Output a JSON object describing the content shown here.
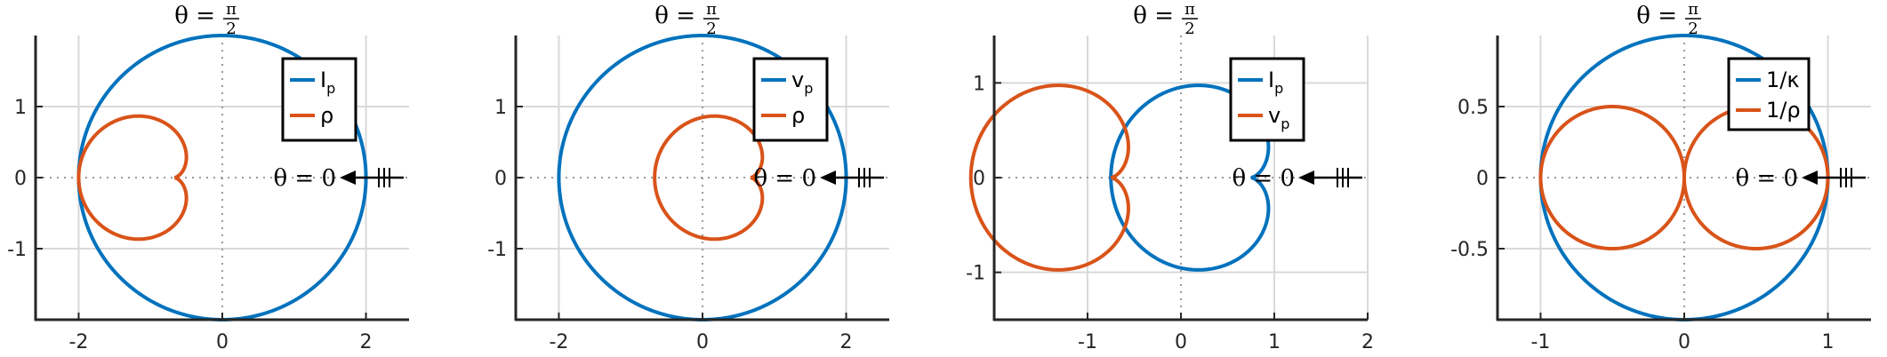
{
  "colors": {
    "blue": "#0072bd",
    "orange": "#d95319",
    "axis": "#262626",
    "grid": "#d9d9d9",
    "zero_line": "#999999"
  },
  "chart_data": [
    {
      "type": "line",
      "subtype": "parametric polar curves",
      "title": "",
      "top_label": {
        "symbol": "θ = ",
        "numerator": "π",
        "denominator": "2"
      },
      "right_label": "θ = 0",
      "xlim": [
        -2.6,
        2.6
      ],
      "ylim": [
        -2,
        2
      ],
      "xticks": [
        -2,
        0,
        2
      ],
      "xtick_labels": [
        "-2",
        "0",
        "2"
      ],
      "yticks": [
        -1,
        0,
        1
      ],
      "ytick_labels": [
        "-1",
        "0",
        "1"
      ],
      "grid": true,
      "legend_position": "top-right",
      "series": [
        {
          "name": "I",
          "subscript": "p",
          "color": "#0072bd",
          "curve": "circle",
          "params": {
            "cx": 0,
            "cy": 0,
            "r": 2
          }
        },
        {
          "name": "ρ",
          "subscript": "",
          "color": "#d95319",
          "curve": "cardioid",
          "params": {
            "a": 0.6667,
            "d": -0.6667,
            "c": -0.6667
          }
        }
      ]
    },
    {
      "type": "line",
      "subtype": "parametric polar curves",
      "title": "",
      "top_label": {
        "symbol": "θ = ",
        "numerator": "π",
        "denominator": "2"
      },
      "right_label": "θ = 0",
      "xlim": [
        -2.6,
        2.6
      ],
      "ylim": [
        -2,
        2
      ],
      "xticks": [
        -2,
        0,
        2
      ],
      "xtick_labels": [
        "-2",
        "0",
        "2"
      ],
      "yticks": [
        -1,
        0,
        1
      ],
      "ytick_labels": [
        "-1",
        "0",
        "1"
      ],
      "grid": true,
      "legend_position": "top-right",
      "series": [
        {
          "name": "v",
          "subscript": "p",
          "color": "#0072bd",
          "curve": "circle",
          "params": {
            "cx": 0,
            "cy": 0,
            "r": 2
          }
        },
        {
          "name": "ρ",
          "subscript": "",
          "color": "#d95319",
          "curve": "cardioid",
          "params": {
            "a": 0.6667,
            "d": 0.6667,
            "c": 0.6667
          }
        }
      ]
    },
    {
      "type": "line",
      "subtype": "parametric polar curves",
      "title": "",
      "top_label": {
        "symbol": "θ = ",
        "numerator": "π",
        "denominator": "2"
      },
      "right_label": "θ = 0",
      "xlim": [
        -2,
        2
      ],
      "ylim": [
        -1.5,
        1.5
      ],
      "xticks": [
        -1,
        0,
        1,
        2
      ],
      "xtick_labels": [
        "-1",
        "0",
        "1",
        "2"
      ],
      "yticks": [
        -1,
        0,
        1
      ],
      "ytick_labels": [
        "-1",
        "0",
        "1"
      ],
      "grid": true,
      "legend_position": "top-right",
      "series": [
        {
          "name": "I",
          "subscript": "p",
          "color": "#0072bd",
          "curve": "cardioid",
          "params": {
            "a": 0.75,
            "d": 0.75,
            "c": 0.75
          }
        },
        {
          "name": "v",
          "subscript": "p",
          "color": "#d95319",
          "curve": "cardioid",
          "params": {
            "a": 0.75,
            "d": -0.75,
            "c": -0.75
          }
        }
      ]
    },
    {
      "type": "line",
      "subtype": "parametric polar curves",
      "title": "",
      "top_label": {
        "symbol": "θ = ",
        "numerator": "π",
        "denominator": "2"
      },
      "right_label": "θ = 0",
      "xlim": [
        -1.3,
        1.3
      ],
      "ylim": [
        -1,
        1
      ],
      "xticks": [
        -1,
        0,
        1
      ],
      "xtick_labels": [
        "-1",
        "0",
        "1"
      ],
      "yticks": [
        -0.5,
        0,
        0.5
      ],
      "ytick_labels": [
        "-0.5",
        "0",
        "0.5"
      ],
      "grid": true,
      "legend_position": "top-right",
      "series": [
        {
          "name": "1/κ",
          "subscript": "",
          "color": "#0072bd",
          "curve": "circle",
          "params": {
            "cx": 0,
            "cy": 0,
            "r": 1
          }
        },
        {
          "name": "1/ρ",
          "subscript": "",
          "color": "#d95319",
          "curve": "two-circles",
          "params": {
            "r": 0.5,
            "cx1": -0.5,
            "cx2": 0.5,
            "cy": 0
          }
        }
      ]
    }
  ]
}
